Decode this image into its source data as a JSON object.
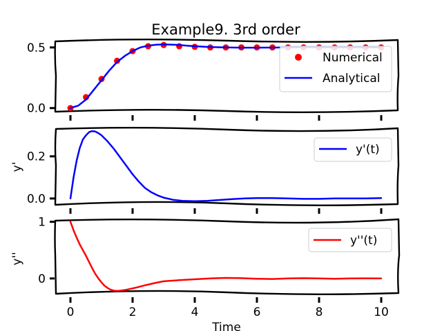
{
  "chart_data": [
    {
      "type": "scatter+line",
      "title": "Example9. 3rd order",
      "xlim": [
        0,
        10
      ],
      "ylim": [
        -0.03,
        0.55
      ],
      "yticks": [
        0.0,
        0.5
      ],
      "ytick_labels": [
        "0.0",
        "0.5"
      ],
      "ylabel": "",
      "legend": "top-right",
      "grid": false,
      "series": [
        {
          "name": "Numerical",
          "kind": "scatter",
          "color": "#ff0000",
          "x": [
            0.0,
            0.5,
            1.0,
            1.5,
            2.0,
            2.5,
            3.0,
            3.5,
            4.0,
            4.5,
            5.0,
            5.5,
            6.0,
            6.5,
            7.0,
            7.5,
            8.0,
            8.5,
            9.0,
            9.5,
            10.0
          ],
          "y": [
            0.0,
            0.09,
            0.24,
            0.39,
            0.47,
            0.51,
            0.52,
            0.51,
            0.505,
            0.5,
            0.5,
            0.5,
            0.5,
            0.5,
            0.5,
            0.5,
            0.5,
            0.5,
            0.5,
            0.5,
            0.5
          ]
        },
        {
          "name": "Analytical",
          "kind": "line",
          "color": "#0000ff",
          "x": [
            0.0,
            0.25,
            0.5,
            0.75,
            1.0,
            1.25,
            1.5,
            1.75,
            2.0,
            2.25,
            2.5,
            2.75,
            3.0,
            3.25,
            3.5,
            3.75,
            4.0,
            4.5,
            5.0,
            5.5,
            6.0,
            6.5,
            7.0,
            7.5,
            8.0,
            8.5,
            9.0,
            9.5,
            10.0
          ],
          "y": [
            0.0,
            0.02,
            0.07,
            0.15,
            0.23,
            0.31,
            0.38,
            0.43,
            0.47,
            0.5,
            0.515,
            0.522,
            0.525,
            0.523,
            0.52,
            0.515,
            0.51,
            0.503,
            0.5,
            0.498,
            0.498,
            0.499,
            0.5,
            0.501,
            0.501,
            0.5,
            0.5,
            0.5,
            0.5
          ]
        }
      ]
    },
    {
      "type": "line",
      "xlim": [
        0,
        10
      ],
      "ylim": [
        -0.03,
        0.33
      ],
      "yticks": [
        0.0,
        0.2
      ],
      "ytick_labels": [
        "0.0",
        "0.2"
      ],
      "ylabel": "y'",
      "legend": "top-right",
      "grid": false,
      "series": [
        {
          "name": "y'(t)",
          "color": "#0000ff",
          "x": [
            0.0,
            0.1,
            0.2,
            0.3,
            0.4,
            0.5,
            0.6,
            0.7,
            0.8,
            0.9,
            1.0,
            1.2,
            1.4,
            1.6,
            1.8,
            2.0,
            2.2,
            2.4,
            2.6,
            2.8,
            3.0,
            3.3,
            3.6,
            4.0,
            4.4,
            4.8,
            5.2,
            5.6,
            6.0,
            6.5,
            7.0,
            7.5,
            8.0,
            8.5,
            9.0,
            9.5,
            10.0
          ],
          "y": [
            0.0,
            0.1,
            0.18,
            0.24,
            0.28,
            0.3,
            0.315,
            0.32,
            0.318,
            0.31,
            0.3,
            0.27,
            0.235,
            0.195,
            0.155,
            0.115,
            0.08,
            0.05,
            0.03,
            0.015,
            0.004,
            -0.006,
            -0.011,
            -0.013,
            -0.011,
            -0.007,
            -0.003,
            0.0,
            0.002,
            0.002,
            0.0,
            -0.002,
            -0.002,
            0.0,
            0.0,
            0.0,
            0.002
          ]
        }
      ]
    },
    {
      "type": "line",
      "xlim": [
        0,
        10
      ],
      "xlabel": "Time",
      "xticks": [
        0,
        2,
        4,
        6,
        8,
        10
      ],
      "xtick_labels": [
        "0",
        "2",
        "4",
        "6",
        "8",
        "10"
      ],
      "ylim": [
        -0.27,
        1.02
      ],
      "yticks": [
        0,
        1
      ],
      "ytick_labels": [
        "0",
        "1"
      ],
      "ylabel": "y''",
      "legend": "top-right",
      "grid": false,
      "series": [
        {
          "name": "y''(t)",
          "color": "#ff0000",
          "x": [
            0.0,
            0.1,
            0.2,
            0.3,
            0.4,
            0.5,
            0.6,
            0.7,
            0.8,
            0.9,
            1.0,
            1.1,
            1.2,
            1.3,
            1.4,
            1.5,
            1.6,
            1.8,
            2.0,
            2.2,
            2.4,
            2.6,
            2.8,
            3.0,
            3.5,
            4.0,
            4.5,
            5.0,
            5.5,
            6.0,
            6.5,
            7.0,
            7.5,
            8.0,
            8.5,
            9.0,
            9.5,
            10.0
          ],
          "y": [
            1.0,
            0.85,
            0.72,
            0.6,
            0.5,
            0.4,
            0.29,
            0.18,
            0.08,
            0.0,
            -0.07,
            -0.13,
            -0.17,
            -0.2,
            -0.215,
            -0.22,
            -0.215,
            -0.2,
            -0.175,
            -0.15,
            -0.12,
            -0.095,
            -0.07,
            -0.05,
            -0.03,
            -0.015,
            0.0,
            0.01,
            0.005,
            -0.005,
            -0.01,
            0.0,
            0.005,
            0.0,
            -0.005,
            0.0,
            0.003,
            0.0
          ]
        }
      ]
    }
  ]
}
